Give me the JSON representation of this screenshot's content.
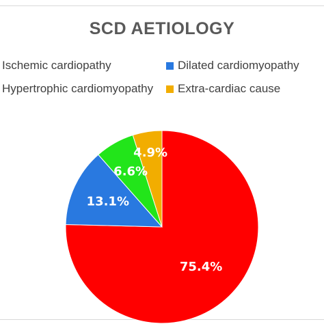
{
  "chart_data": {
    "type": "pie",
    "title": "SCD AETIOLOGY",
    "legend_position": "top",
    "slices": [
      {
        "name": "Ischemic cardiopathy",
        "value": 75.4,
        "label": "75.4%",
        "color": "#ff0000"
      },
      {
        "name": "Dilated cardiomyopathy",
        "value": 13.1,
        "label": "13.1%",
        "color": "#2979e0"
      },
      {
        "name": "Hypertrophic cardiomyopathy",
        "value": 6.6,
        "label": "6.6%",
        "color": "#22e51a"
      },
      {
        "name": "Extra-cardiac cause",
        "value": 4.9,
        "label": "4.9%",
        "color": "#f2ad00"
      }
    ]
  }
}
